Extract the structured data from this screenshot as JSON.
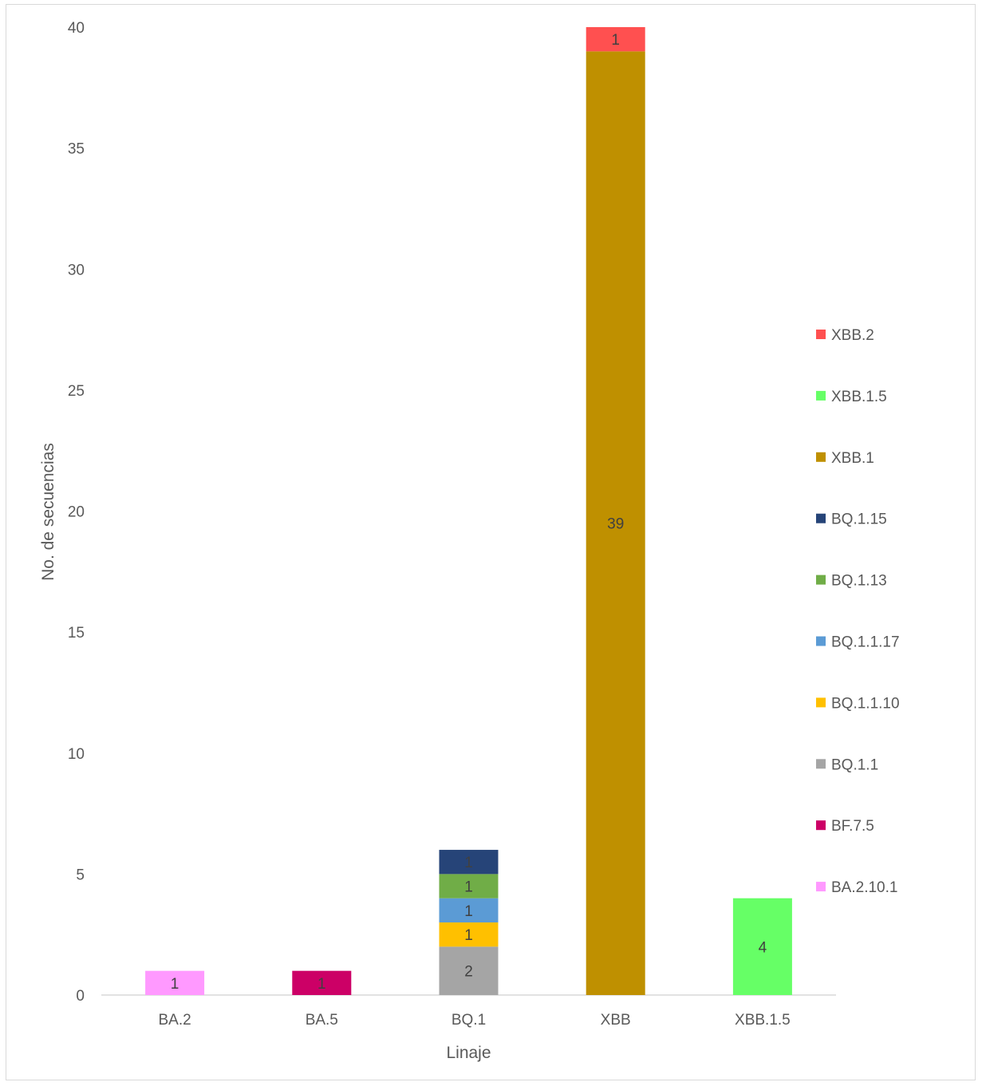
{
  "chart_data": {
    "type": "bar",
    "stacked": true,
    "categories": [
      "BA.2",
      "BA.5",
      "BQ.1",
      "XBB",
      "XBB.1.5"
    ],
    "xlabel": "Linaje",
    "ylabel": "No. de secuencias",
    "ylim": [
      0,
      40
    ],
    "yticks": [
      0,
      5,
      10,
      15,
      20,
      25,
      30,
      35,
      40
    ],
    "grid": false,
    "legend_position": "right",
    "series": [
      {
        "name": "BA.2.10.1",
        "color": "#ff99ff",
        "values": [
          1,
          0,
          0,
          0,
          0
        ]
      },
      {
        "name": "BF.7.5",
        "color": "#cc0066",
        "values": [
          0,
          1,
          0,
          0,
          0
        ]
      },
      {
        "name": "BQ.1.1",
        "color": "#a5a5a5",
        "values": [
          0,
          0,
          2,
          0,
          0
        ]
      },
      {
        "name": "BQ.1.1.10",
        "color": "#ffc000",
        "values": [
          0,
          0,
          1,
          0,
          0
        ]
      },
      {
        "name": "BQ.1.1.17",
        "color": "#5b9bd5",
        "values": [
          0,
          0,
          1,
          0,
          0
        ]
      },
      {
        "name": "BQ.1.13",
        "color": "#70ad47",
        "values": [
          0,
          0,
          1,
          0,
          0
        ]
      },
      {
        "name": "BQ.1.15",
        "color": "#264478",
        "values": [
          0,
          0,
          1,
          0,
          0
        ]
      },
      {
        "name": "XBB.1",
        "color": "#bf9000",
        "values": [
          0,
          0,
          0,
          39,
          0
        ]
      },
      {
        "name": "XBB.1.5",
        "color": "#66ff66",
        "values": [
          0,
          0,
          0,
          0,
          4
        ]
      },
      {
        "name": "XBB.2",
        "color": "#ff5050",
        "values": [
          0,
          0,
          0,
          1,
          0
        ]
      }
    ],
    "legend_order": [
      "XBB.2",
      "XBB.1.5",
      "XBB.1",
      "BQ.1.15",
      "BQ.1.13",
      "BQ.1.1.17",
      "BQ.1.1.10",
      "BQ.1.1",
      "BF.7.5",
      "BA.2.10.1"
    ]
  }
}
